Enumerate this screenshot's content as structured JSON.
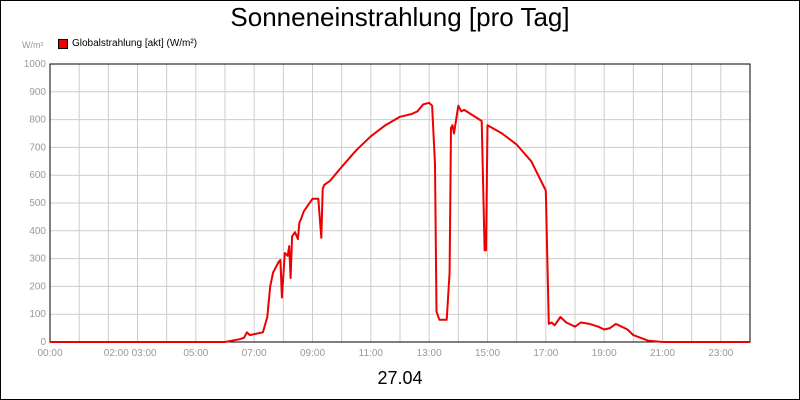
{
  "chart_data": {
    "type": "line",
    "title": "Sonneneinstrahlung [pro Tag]",
    "ylabel": "W/m²",
    "xlabel": "27.04",
    "ylim": [
      0,
      1000
    ],
    "xlim": [
      0,
      24
    ],
    "grid": true,
    "legend_position": "top-left",
    "y_ticks": [
      "0",
      "100",
      "200",
      "300",
      "400",
      "500",
      "600",
      "700",
      "800",
      "900",
      "1000"
    ],
    "x_ticks": [
      {
        "pos": 0,
        "label": "00:00"
      },
      {
        "pos": 2.75,
        "label": "02:00 03:00"
      },
      {
        "pos": 5,
        "label": "05:00"
      },
      {
        "pos": 7,
        "label": "07:00"
      },
      {
        "pos": 9,
        "label": "09:00"
      },
      {
        "pos": 11,
        "label": "11:00"
      },
      {
        "pos": 13,
        "label": "13:00"
      },
      {
        "pos": 15,
        "label": "15:00"
      },
      {
        "pos": 17,
        "label": "17:00"
      },
      {
        "pos": 19,
        "label": "19:00"
      },
      {
        "pos": 21,
        "label": "21:00"
      },
      {
        "pos": 23,
        "label": "23:00"
      }
    ],
    "series": [
      {
        "name": "Globalstrahlung [akt] (W/m²)",
        "color": "#ee0000",
        "x": [
          0,
          6.0,
          6.5,
          6.65,
          6.75,
          6.85,
          7.3,
          7.45,
          7.55,
          7.65,
          7.75,
          7.85,
          7.9,
          7.95,
          8.05,
          8.15,
          8.2,
          8.25,
          8.3,
          8.4,
          8.5,
          8.55,
          8.6,
          8.7,
          9.0,
          9.2,
          9.3,
          9.35,
          9.4,
          9.6,
          10.0,
          10.5,
          11.0,
          11.5,
          12.0,
          12.4,
          12.6,
          12.8,
          13.0,
          13.1,
          13.2,
          13.25,
          13.35,
          13.6,
          13.7,
          13.75,
          13.8,
          13.85,
          14.0,
          14.1,
          14.2,
          14.5,
          14.8,
          14.9,
          14.95,
          15.0,
          15.5,
          16.0,
          16.5,
          17.0,
          17.1,
          17.2,
          17.3,
          17.5,
          17.7,
          17.8,
          18.0,
          18.2,
          18.5,
          18.8,
          19.0,
          19.2,
          19.4,
          19.6,
          19.8,
          20.0,
          20.5,
          21.0,
          24.0
        ],
        "y": [
          0,
          0,
          10,
          15,
          35,
          25,
          35,
          90,
          200,
          250,
          270,
          290,
          295,
          160,
          320,
          310,
          345,
          230,
          380,
          395,
          370,
          430,
          440,
          470,
          515,
          515,
          375,
          550,
          565,
          580,
          630,
          690,
          740,
          780,
          810,
          820,
          830,
          855,
          860,
          850,
          640,
          110,
          80,
          80,
          250,
          770,
          780,
          750,
          850,
          830,
          835,
          815,
          795,
          330,
          330,
          780,
          750,
          710,
          650,
          545,
          65,
          70,
          60,
          90,
          70,
          65,
          55,
          70,
          65,
          55,
          45,
          50,
          65,
          55,
          45,
          25,
          5,
          0,
          0
        ]
      }
    ]
  }
}
